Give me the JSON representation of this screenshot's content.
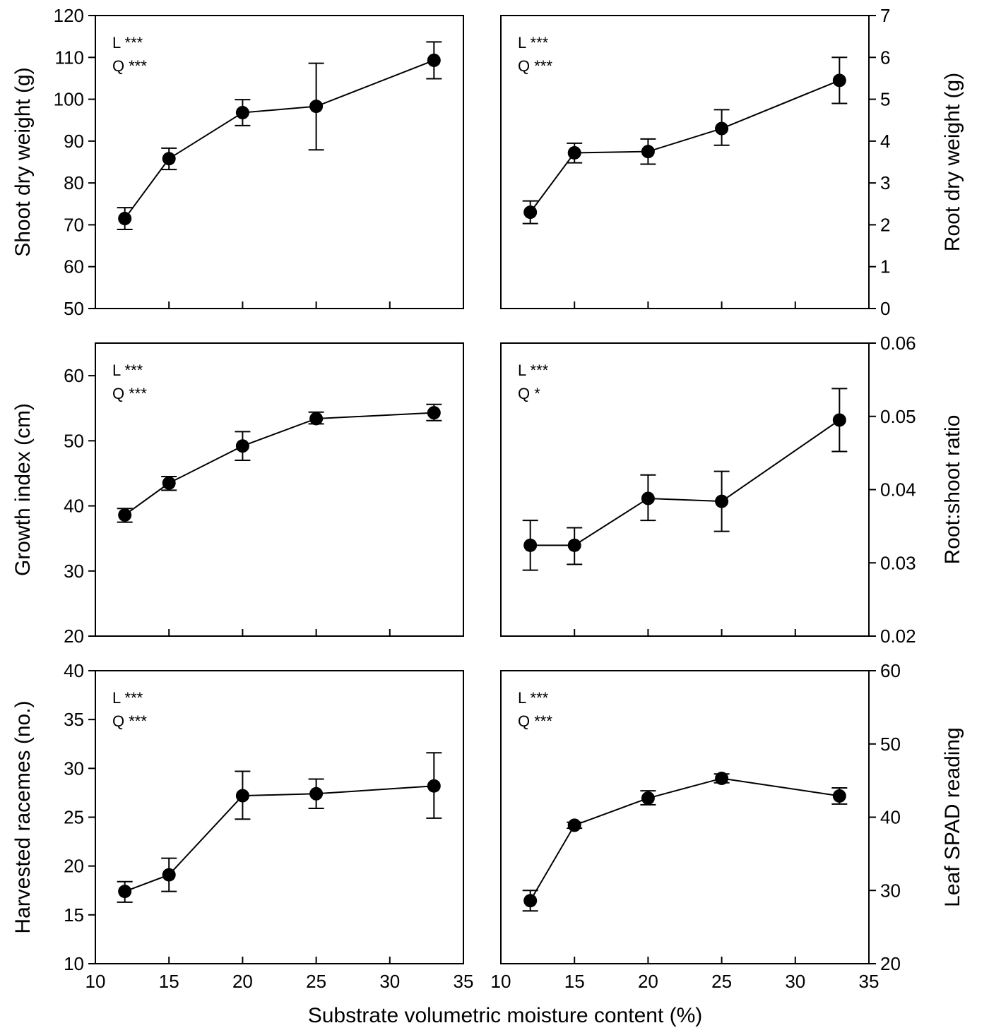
{
  "figure": {
    "xlabel": "Substrate volumetric moisture content (%)"
  },
  "chart_data": [
    {
      "id": "shoot",
      "type": "line",
      "x": [
        12,
        15,
        20,
        25,
        33
      ],
      "y": [
        71.5,
        85.8,
        96.8,
        98.3,
        109.3
      ],
      "err_low": [
        68.9,
        83.2,
        93.7,
        87.9,
        104.9
      ],
      "err_high": [
        74.1,
        88.3,
        99.9,
        108.6,
        113.7
      ],
      "xlim": [
        10,
        35
      ],
      "ylim": [
        50,
        120
      ],
      "xticks": [
        10,
        15,
        20,
        25,
        30,
        35
      ],
      "yticks": [
        50,
        60,
        70,
        80,
        90,
        100,
        110,
        120
      ],
      "ylabel": "Shoot dry weight (g)",
      "yaxis_side": "left",
      "show_xtick_labels": false,
      "annotations": [
        "L ***",
        "Q ***"
      ]
    },
    {
      "id": "root",
      "type": "line",
      "x": [
        12,
        15,
        20,
        25,
        33
      ],
      "y": [
        2.3,
        3.72,
        3.75,
        4.3,
        5.45
      ],
      "err_low": [
        2.03,
        3.48,
        3.45,
        3.9,
        4.9
      ],
      "err_high": [
        2.57,
        3.95,
        4.05,
        4.75,
        6.0
      ],
      "xlim": [
        10,
        35
      ],
      "ylim": [
        0,
        7
      ],
      "xticks": [
        10,
        15,
        20,
        25,
        30,
        35
      ],
      "yticks": [
        0,
        1,
        2,
        3,
        4,
        5,
        6,
        7
      ],
      "ylabel": "Root dry weight (g)",
      "yaxis_side": "right",
      "show_xtick_labels": false,
      "annotations": [
        "L ***",
        "Q ***"
      ]
    },
    {
      "id": "growth",
      "type": "line",
      "x": [
        12,
        15,
        20,
        25,
        33
      ],
      "y": [
        38.6,
        43.5,
        49.2,
        53.4,
        54.3
      ],
      "err_low": [
        37.5,
        42.4,
        47.0,
        52.6,
        53.1
      ],
      "err_high": [
        39.6,
        44.5,
        51.4,
        54.4,
        55.6
      ],
      "xlim": [
        10,
        35
      ],
      "ylim": [
        20,
        65
      ],
      "xticks": [
        10,
        15,
        20,
        25,
        30,
        35
      ],
      "yticks": [
        20,
        30,
        40,
        50,
        60
      ],
      "ylabel": "Growth index (cm)",
      "yaxis_side": "left",
      "show_xtick_labels": false,
      "annotations": [
        "L ***",
        "Q ***"
      ]
    },
    {
      "id": "ratio",
      "type": "line",
      "x": [
        12,
        15,
        20,
        25,
        33
      ],
      "y": [
        0.0324,
        0.0324,
        0.0388,
        0.0384,
        0.0495
      ],
      "err_low": [
        0.029,
        0.0298,
        0.0358,
        0.0343,
        0.0452
      ],
      "err_high": [
        0.0358,
        0.0348,
        0.042,
        0.0425,
        0.0538
      ],
      "xlim": [
        10,
        35
      ],
      "ylim": [
        0.02,
        0.06
      ],
      "xticks": [
        10,
        15,
        20,
        25,
        30,
        35
      ],
      "yticks": [
        "0.02",
        "0.03",
        "0.04",
        "0.05",
        "0.06"
      ],
      "ylabel": "Root:shoot ratio",
      "yaxis_side": "right",
      "show_xtick_labels": false,
      "annotations": [
        "L ***",
        "Q *"
      ]
    },
    {
      "id": "racemes",
      "type": "line",
      "x": [
        12,
        15,
        20,
        25,
        33
      ],
      "y": [
        17.4,
        19.1,
        27.2,
        27.4,
        28.2
      ],
      "err_low": [
        16.3,
        17.4,
        24.8,
        25.9,
        24.9
      ],
      "err_high": [
        18.4,
        20.8,
        29.7,
        28.9,
        31.6
      ],
      "xlim": [
        10,
        35
      ],
      "ylim": [
        10,
        40
      ],
      "xticks": [
        10,
        15,
        20,
        25,
        30,
        35
      ],
      "yticks": [
        10,
        15,
        20,
        25,
        30,
        35,
        40
      ],
      "ylabel": "Harvested racemes (no.)",
      "yaxis_side": "left",
      "show_xtick_labels": true,
      "annotations": [
        "L ***",
        "Q ***"
      ]
    },
    {
      "id": "spad",
      "type": "line",
      "x": [
        12,
        15,
        20,
        25,
        33
      ],
      "y": [
        28.6,
        38.9,
        42.6,
        45.3,
        42.9
      ],
      "err_low": [
        27.2,
        38.5,
        41.7,
        44.7,
        41.8
      ],
      "err_high": [
        30.0,
        39.3,
        43.6,
        45.9,
        44.0
      ],
      "xlim": [
        10,
        35
      ],
      "ylim": [
        20,
        60
      ],
      "xticks": [
        10,
        15,
        20,
        25,
        30,
        35
      ],
      "yticks": [
        20,
        30,
        40,
        50,
        60
      ],
      "ylabel": "Leaf SPAD reading",
      "yaxis_side": "right",
      "show_xtick_labels": true,
      "annotations": [
        "L ***",
        "Q ***"
      ]
    }
  ]
}
